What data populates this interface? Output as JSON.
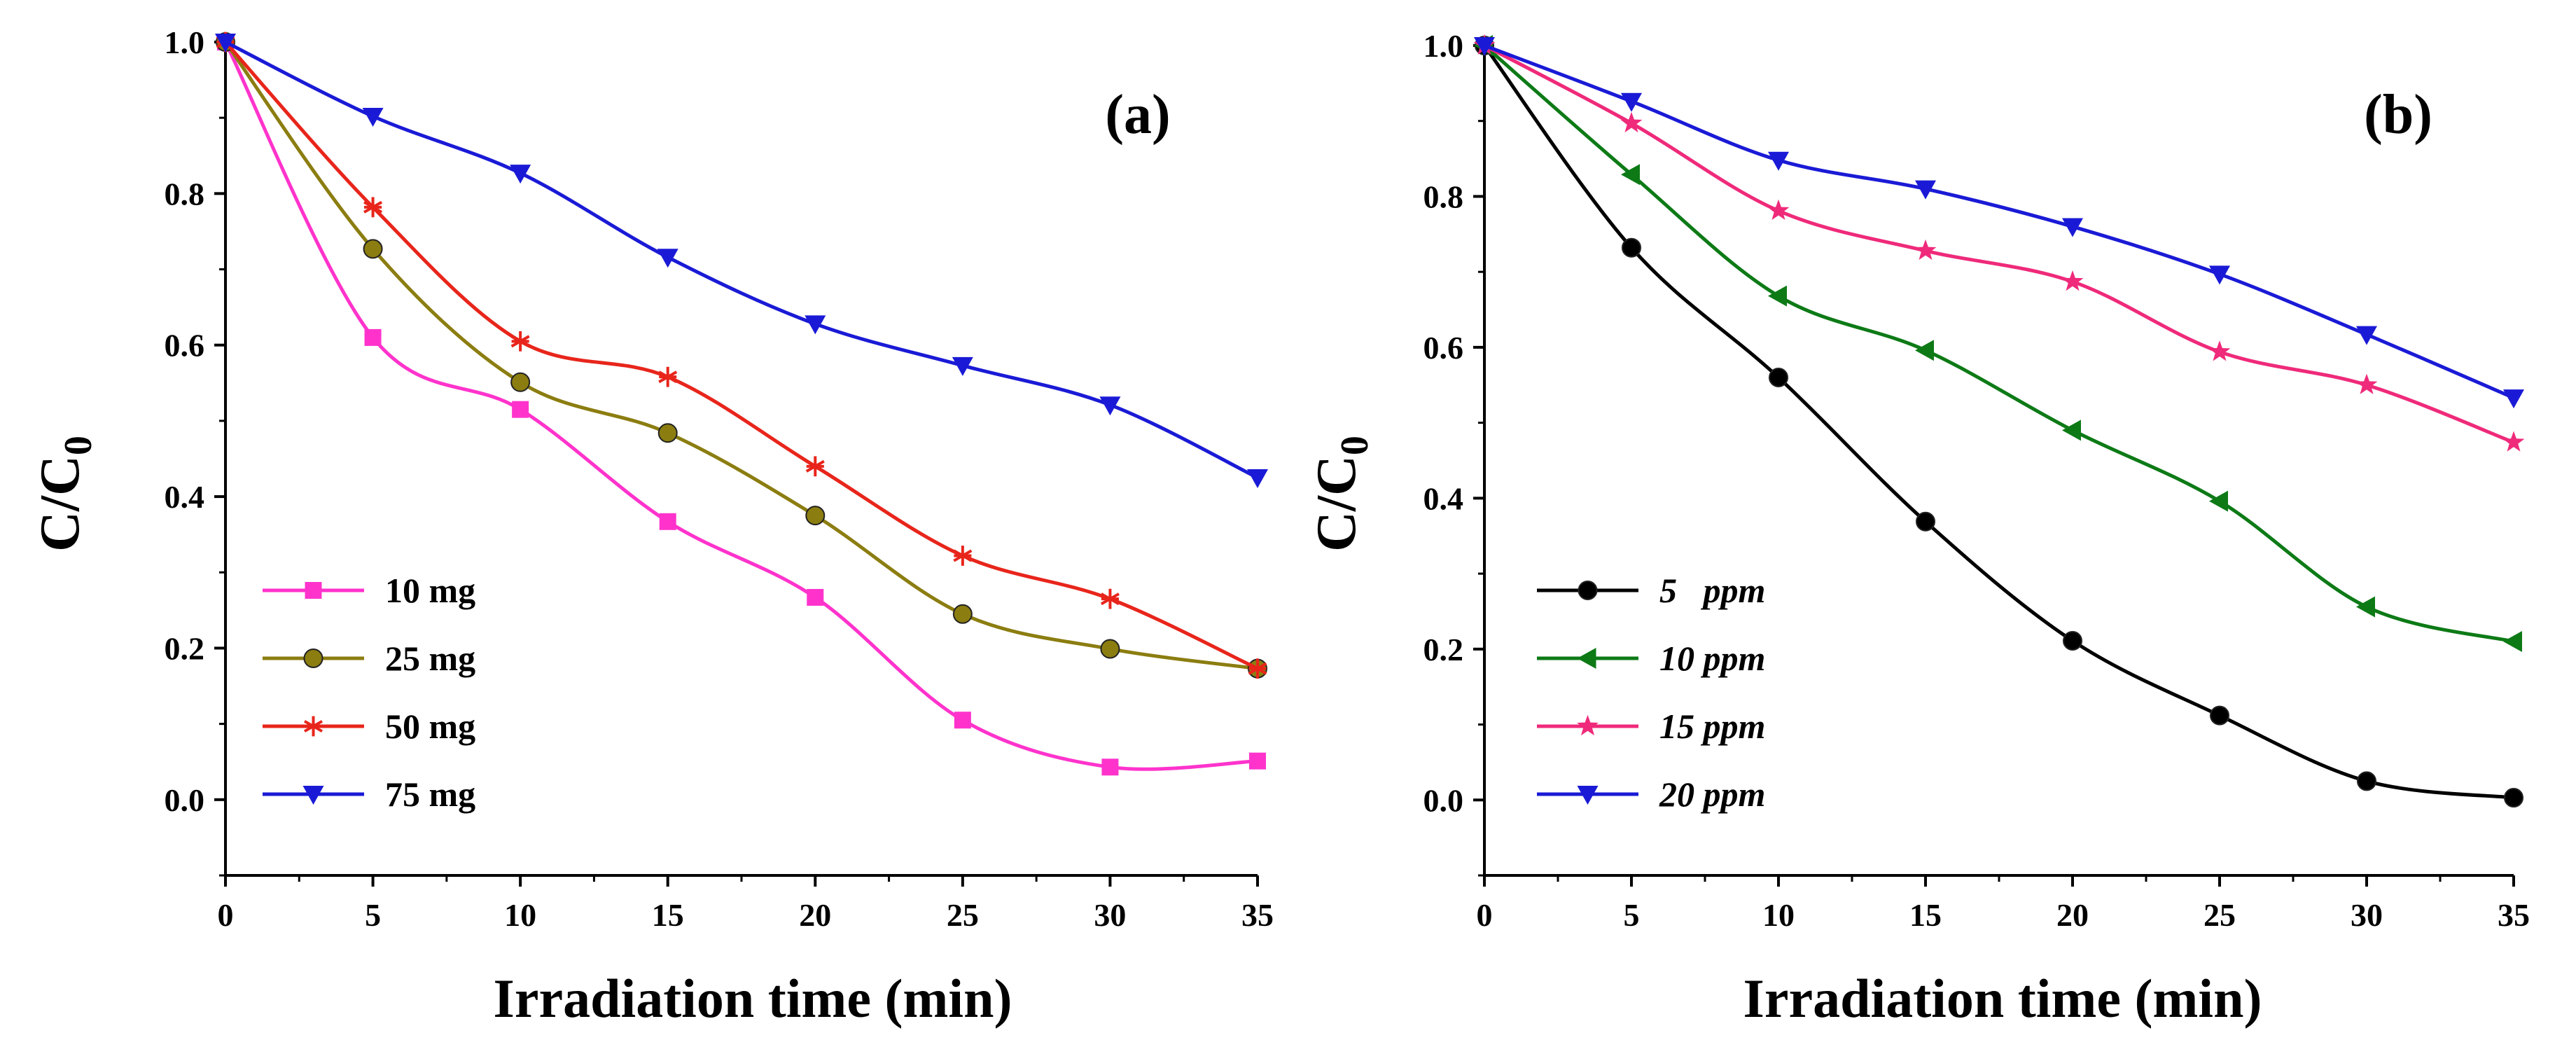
{
  "chart_data": [
    {
      "type": "line",
      "panel_label": "(a)",
      "xlabel": "Irradiation time (min)",
      "ylabel": "C/C",
      "ylabel_subscript": "0",
      "xlim": [
        0,
        35
      ],
      "ylim": [
        -0.1,
        1.0
      ],
      "xticks": [
        0,
        5,
        10,
        15,
        20,
        25,
        30,
        35
      ],
      "xtick_labels": [
        "0",
        "5",
        "10",
        "15",
        "20",
        "25",
        "30",
        "35"
      ],
      "yticks": [
        0.0,
        0.2,
        0.4,
        0.6,
        0.8,
        1.0
      ],
      "ytick_labels": [
        "0.0",
        "0.2",
        "0.4",
        "0.6",
        "0.8",
        "1.0"
      ],
      "legend_position": "bottom-left",
      "legend_italic": false,
      "x": [
        0,
        5,
        10,
        15,
        20,
        25,
        30,
        35
      ],
      "series": [
        {
          "name": "10 mg",
          "color": "#ff33cc",
          "marker": "square",
          "values": [
            1.0,
            0.61,
            0.515,
            0.367,
            0.267,
            0.105,
            0.043,
            0.051
          ]
        },
        {
          "name": "25 mg",
          "color": "#8b7d10",
          "marker": "circle",
          "values": [
            1.0,
            0.727,
            0.551,
            0.484,
            0.375,
            0.245,
            0.199,
            0.173
          ]
        },
        {
          "name": "50 mg",
          "color": "#e8251b",
          "marker": "asterisk",
          "values": [
            1.0,
            0.782,
            0.605,
            0.558,
            0.44,
            0.322,
            0.265,
            0.173
          ]
        },
        {
          "name": "75 mg",
          "color": "#1a1ad6",
          "marker": "triangle-down",
          "values": [
            1.0,
            0.902,
            0.827,
            0.716,
            0.628,
            0.573,
            0.521,
            0.425
          ]
        }
      ]
    },
    {
      "type": "line",
      "panel_label": "(b)",
      "xlabel": "Irradiation time (min)",
      "ylabel": "C/C",
      "ylabel_subscript": "0",
      "xlim": [
        0,
        35
      ],
      "ylim": [
        -0.1,
        1.0
      ],
      "xticks": [
        0,
        5,
        10,
        15,
        20,
        25,
        30,
        35
      ],
      "xtick_labels": [
        "0",
        "5",
        "10",
        "15",
        "20",
        "25",
        "30",
        "35"
      ],
      "yticks": [
        0.0,
        0.2,
        0.4,
        0.6,
        0.8,
        1.0
      ],
      "ytick_labels": [
        "0.0",
        "0.2",
        "0.4",
        "0.6",
        "0.8",
        "1.0"
      ],
      "legend_position": "bottom-left",
      "legend_italic": true,
      "x": [
        0,
        5,
        10,
        15,
        20,
        25,
        30,
        35
      ],
      "series": [
        {
          "name": "5   ppm",
          "color": "#000000",
          "marker": "circle",
          "values": [
            1.0,
            0.732,
            0.56,
            0.369,
            0.211,
            0.112,
            0.025,
            0.003
          ]
        },
        {
          "name": "10 ppm",
          "color": "#0d7a16",
          "marker": "triangle-left",
          "values": [
            1.0,
            0.829,
            0.668,
            0.596,
            0.49,
            0.396,
            0.256,
            0.21
          ]
        },
        {
          "name": "15 ppm",
          "color": "#ef2a7a",
          "marker": "star",
          "values": [
            1.0,
            0.897,
            0.781,
            0.728,
            0.687,
            0.594,
            0.55,
            0.474
          ]
        },
        {
          "name": "20 ppm",
          "color": "#1a1ad6",
          "marker": "triangle-down",
          "values": [
            1.0,
            0.926,
            0.848,
            0.81,
            0.76,
            0.697,
            0.617,
            0.533
          ]
        }
      ]
    }
  ]
}
